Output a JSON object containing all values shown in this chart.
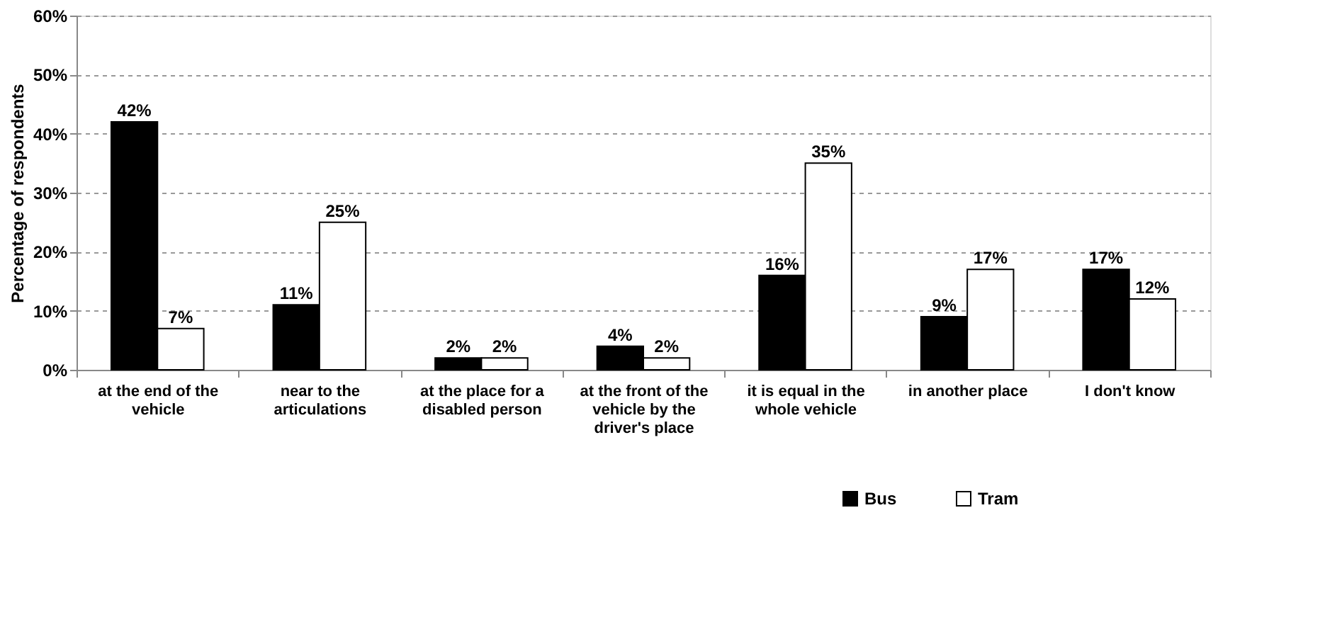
{
  "chart_data": {
    "type": "bar",
    "ylabel": "Percentage of respondents",
    "categories": [
      "at the end of the vehicle",
      "near to the articulations",
      "at the place for a disabled person",
      "at the front of the vehicle by the driver's place",
      "it is equal in the whole vehicle",
      "in another place",
      "I don't know"
    ],
    "series": [
      {
        "name": "Bus",
        "color": "#000000",
        "values": [
          42,
          11,
          2,
          4,
          16,
          9,
          17
        ],
        "value_labels": [
          "42%",
          "11%",
          "2%",
          "4%",
          "16%",
          "9%",
          "17%"
        ]
      },
      {
        "name": "Tram",
        "color": "#ffffff",
        "values": [
          7,
          25,
          2,
          2,
          35,
          17,
          12
        ],
        "value_labels": [
          "7%",
          "25%",
          "2%",
          "2%",
          "35%",
          "17%",
          "12%"
        ]
      }
    ],
    "ylim": [
      0,
      60
    ],
    "yticks": [
      {
        "value": 0,
        "label": "0%"
      },
      {
        "value": 10,
        "label": "10%"
      },
      {
        "value": 20,
        "label": "20%"
      },
      {
        "value": 30,
        "label": "30%"
      },
      {
        "value": 40,
        "label": "40%"
      },
      {
        "value": 50,
        "label": "50%"
      },
      {
        "value": 60,
        "label": "60%"
      }
    ],
    "grid": "y",
    "legend": "bottom right"
  }
}
